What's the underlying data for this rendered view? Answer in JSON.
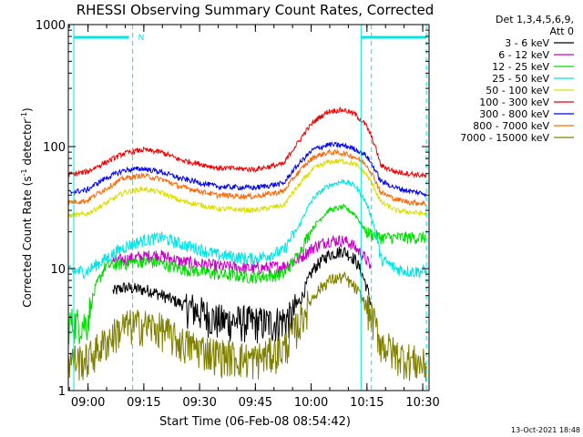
{
  "chart_data": {
    "type": "line",
    "title": "RHESSI Observing Summary Count Rates, Corrected",
    "xlabel": "Start Time (06-Feb-08 08:54:42)",
    "ylabel_main": "Corrected Count Rate (s",
    "ylabel_sup1": "-1",
    "ylabel_mid": " detector",
    "ylabel_sup2": "-1",
    "ylabel_end": ")",
    "y_scale": "log",
    "ylim": [
      1,
      1000
    ],
    "xlim_minutes": [
      0,
      97
    ],
    "yticks": [
      {
        "value": 1,
        "label": "1"
      },
      {
        "value": 10,
        "label": "10"
      },
      {
        "value": 100,
        "label": "100"
      },
      {
        "value": 1000,
        "label": "1000"
      }
    ],
    "xticks": [
      {
        "t": 5.3,
        "label": "09:00"
      },
      {
        "t": 20.3,
        "label": "09:15"
      },
      {
        "t": 35.3,
        "label": "09:30"
      },
      {
        "t": 50.3,
        "label": "09:45"
      },
      {
        "t": 65.3,
        "label": "10:00"
      },
      {
        "t": 80.3,
        "label": "10:15"
      },
      {
        "t": 95.3,
        "label": "10:30"
      }
    ],
    "legend": {
      "header1": "Det 1,3,4,5,6,9,",
      "header2": "Att 0",
      "placement": "right"
    },
    "night_marker": {
      "label": "N",
      "start": 0,
      "end": 17.3
    },
    "saa_marker": {
      "start": 78.7,
      "end": 96.3
    },
    "dashed_lines": [
      17.3,
      81.5,
      96.3
    ],
    "solid_line": 78.7,
    "series": [
      {
        "name": "3 - 6 keV",
        "color": "#000000",
        "x": [
          12,
          15,
          22,
          30,
          40,
          55,
          60,
          63,
          66,
          70,
          74,
          77,
          79,
          81.5
        ],
        "values": [
          6.5,
          7,
          6.6,
          5.2,
          3.8,
          3.6,
          4,
          6,
          10,
          13,
          14,
          12,
          9,
          5
        ]
      },
      {
        "name": "6 - 12 keV",
        "color": "#cc00cc",
        "x": [
          12,
          16,
          20,
          24,
          30,
          40,
          50,
          58,
          62,
          66,
          70,
          74,
          76,
          78,
          80,
          81.5
        ],
        "values": [
          11.5,
          12,
          12.5,
          13,
          11.5,
          10.5,
          10,
          10.5,
          12,
          15,
          17,
          17,
          16,
          14,
          12,
          10
        ]
      },
      {
        "name": "12 - 25 keV",
        "color": "#00dd00",
        "x": [
          0,
          5,
          10,
          15,
          20,
          25,
          30,
          40,
          50,
          58,
          62,
          66,
          70,
          74,
          77,
          80,
          84,
          88,
          92,
          96.3
        ],
        "values": [
          3.6,
          3.6,
          10.5,
          11,
          11.5,
          11,
          10,
          9,
          8.5,
          9,
          13,
          22,
          30,
          32,
          28,
          20,
          18,
          18,
          18,
          18
        ]
      },
      {
        "name": "25 - 50 keV",
        "color": "#00e5e5",
        "x": [
          0,
          5,
          10,
          15,
          20,
          25,
          30,
          40,
          50,
          58,
          62,
          66,
          70,
          74,
          77,
          80,
          84,
          88,
          92,
          96.3
        ],
        "values": [
          9.5,
          9.5,
          12,
          15,
          17,
          18,
          16,
          13,
          12,
          14,
          22,
          38,
          48,
          52,
          48,
          35,
          12,
          10,
          9.5,
          9.5
        ]
      },
      {
        "name": "50 - 100 keV",
        "color": "#dddd00",
        "x": [
          0,
          5,
          10,
          15,
          20,
          25,
          30,
          40,
          50,
          58,
          62,
          66,
          70,
          74,
          77,
          80,
          84,
          88,
          92,
          96.3
        ],
        "values": [
          27,
          28,
          34,
          42,
          45,
          42,
          36,
          31,
          30,
          33,
          48,
          66,
          75,
          76,
          72,
          60,
          35,
          30,
          29,
          28
        ]
      },
      {
        "name": "100 - 300 keV",
        "color": "#ee0000",
        "x": [
          0,
          5,
          10,
          15,
          20,
          25,
          30,
          40,
          50,
          58,
          62,
          66,
          70,
          74,
          77,
          80,
          84,
          88,
          92,
          96.3
        ],
        "values": [
          59,
          62,
          74,
          88,
          94,
          90,
          78,
          67,
          65,
          72,
          110,
          160,
          195,
          200,
          185,
          150,
          70,
          62,
          60,
          57
        ]
      },
      {
        "name": "300 - 800 keV",
        "color": "#0000ee",
        "x": [
          0,
          5,
          10,
          15,
          20,
          25,
          30,
          40,
          50,
          58,
          62,
          66,
          70,
          74,
          77,
          80,
          84,
          88,
          92,
          96.3
        ],
        "values": [
          42,
          44,
          55,
          64,
          66,
          62,
          55,
          47,
          46,
          50,
          72,
          95,
          104,
          102,
          96,
          85,
          52,
          46,
          43,
          41
        ]
      },
      {
        "name": "800 - 7000 keV",
        "color": "#ff6600",
        "x": [
          0,
          5,
          10,
          15,
          20,
          25,
          30,
          40,
          50,
          58,
          62,
          66,
          70,
          74,
          77,
          80,
          84,
          88,
          92,
          96.3
        ],
        "values": [
          35,
          36,
          45,
          55,
          58,
          54,
          47,
          40,
          39,
          43,
          62,
          82,
          90,
          88,
          82,
          72,
          42,
          37,
          35,
          34
        ]
      },
      {
        "name": "7000 - 15000 keV",
        "color": "#808000",
        "x": [
          0,
          5,
          10,
          15,
          20,
          25,
          30,
          40,
          50,
          58,
          62,
          66,
          70,
          74,
          77,
          80,
          84,
          88,
          92,
          96.3
        ],
        "values": [
          1.8,
          1.8,
          2.5,
          3.4,
          3.5,
          3.2,
          2.5,
          2,
          1.8,
          2.2,
          3.5,
          6,
          8,
          8.5,
          7,
          5,
          2.5,
          2,
          1.8,
          1.6
        ]
      }
    ]
  },
  "footer": {
    "timestamp": "13-Oct-2021 18:48"
  }
}
